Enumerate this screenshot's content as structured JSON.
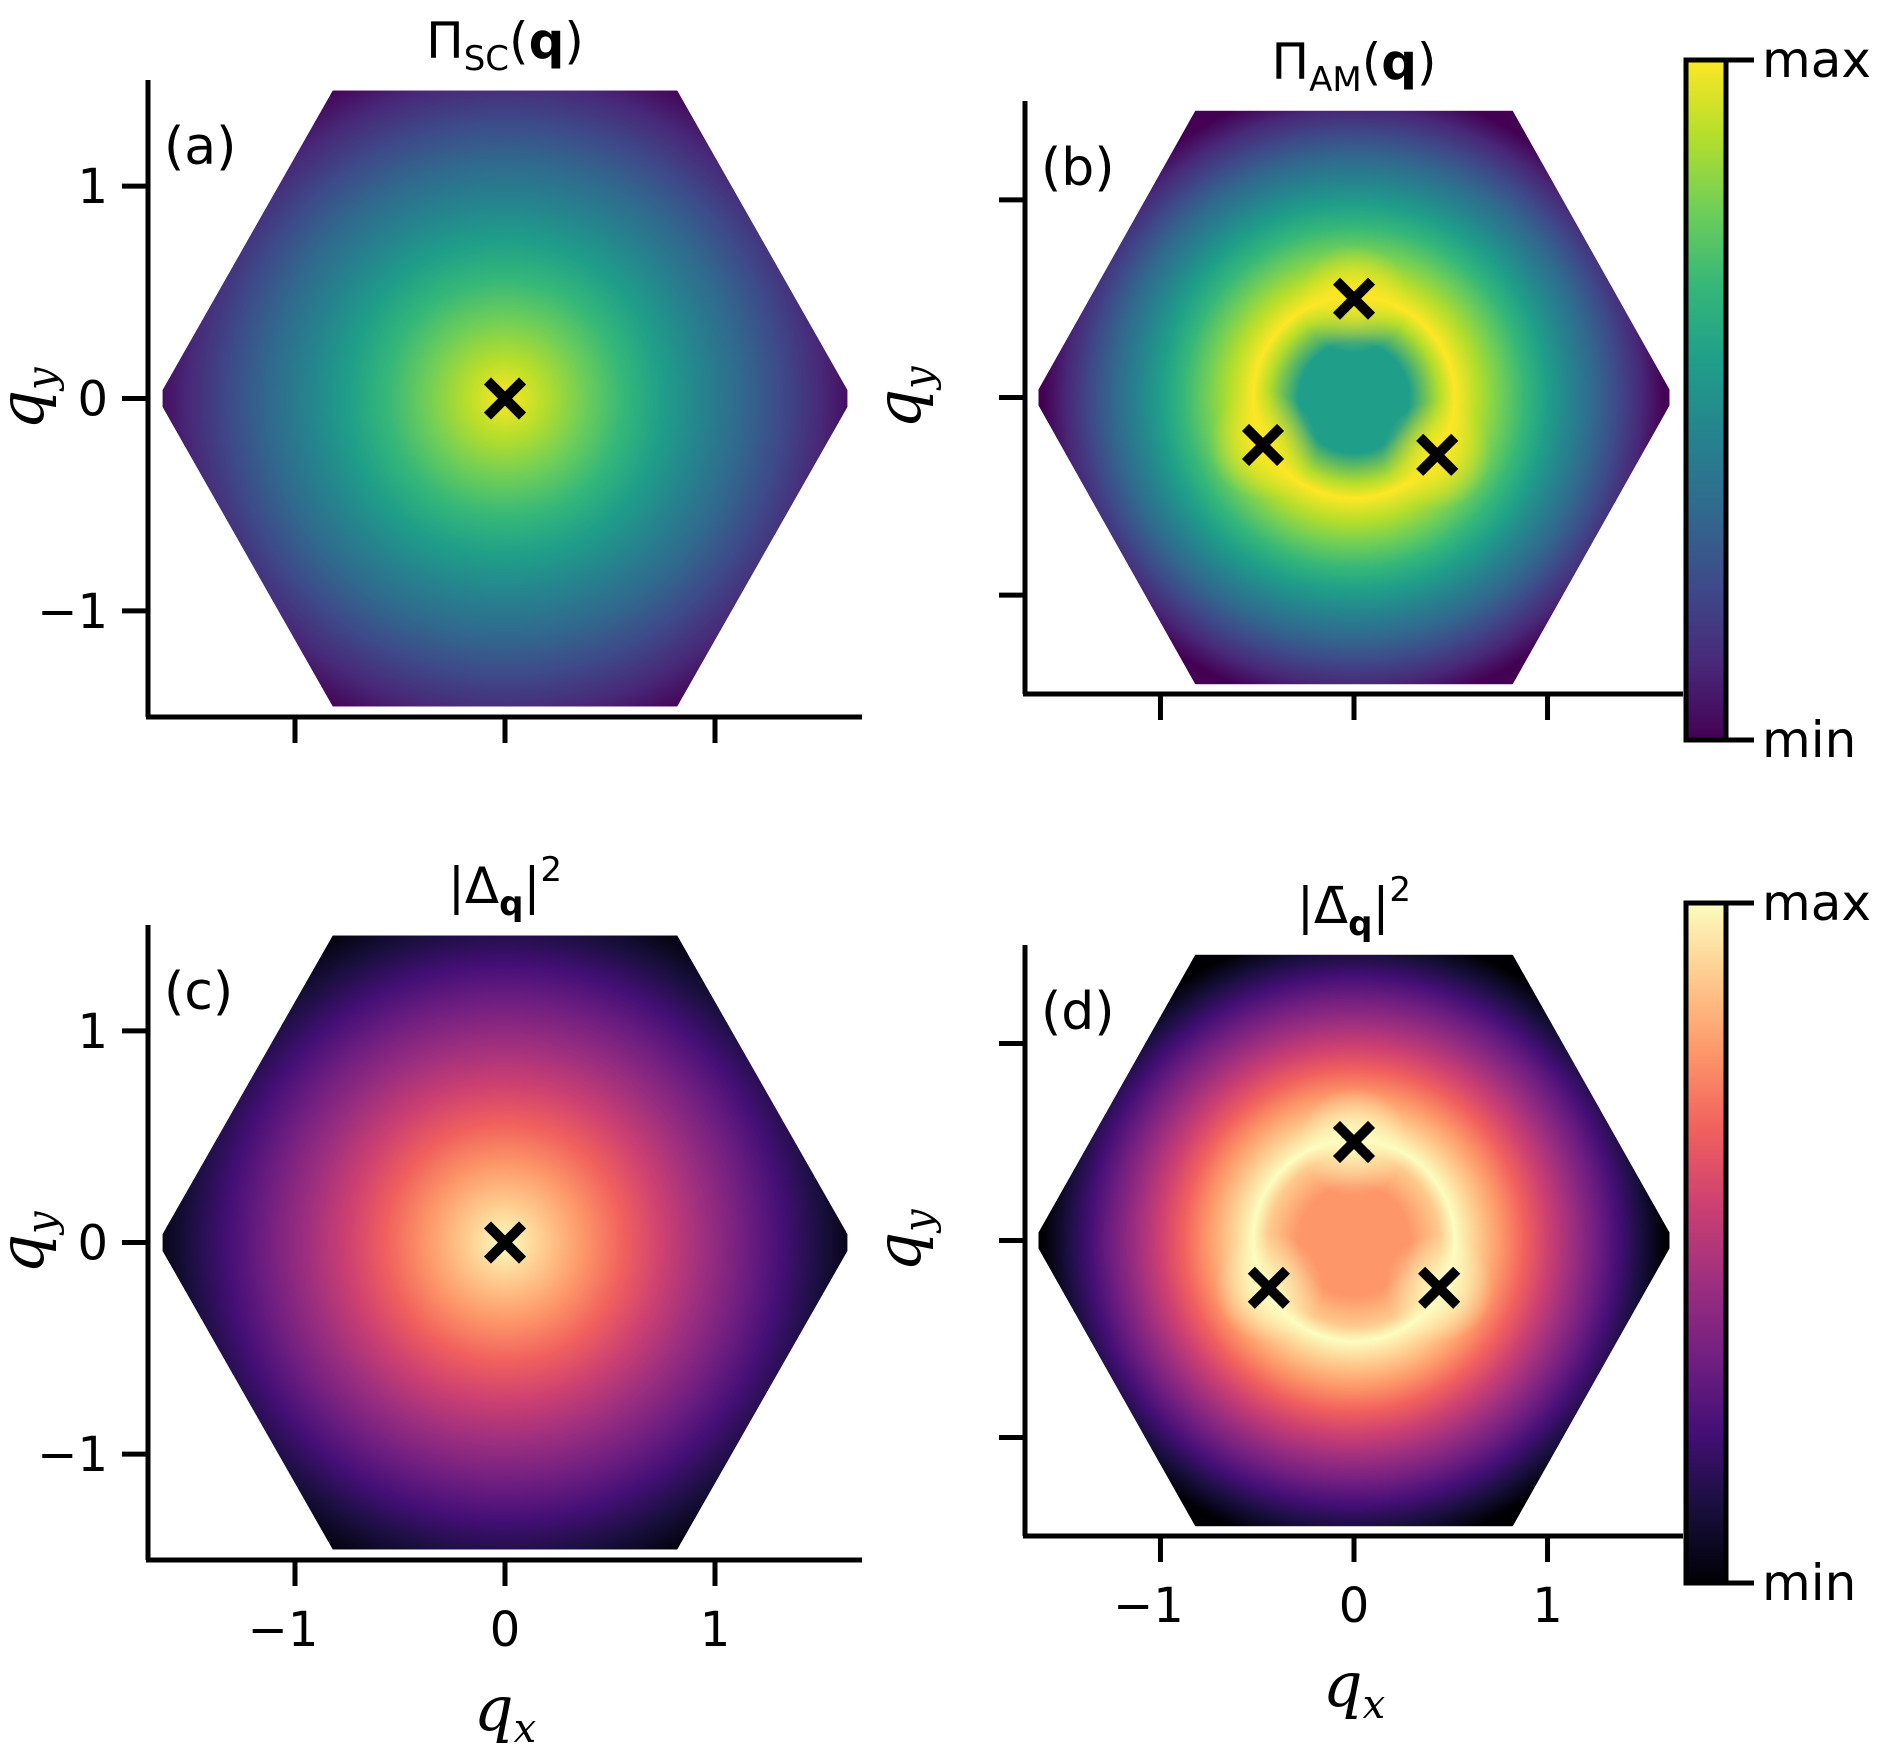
{
  "chart_data": [
    {
      "type": "heatmap",
      "panel": "(a)",
      "title": "Π_SC(q)",
      "title_parts": {
        "main": "Π",
        "sub": "SC",
        "arg_open": "(",
        "arg": "q",
        "arg_close": ")"
      },
      "xlabel": "q_x",
      "ylabel": "q_y",
      "xlim": [
        -1.7,
        1.7
      ],
      "ylim": [
        -1.5,
        1.5
      ],
      "x_ticks": [
        -1,
        0,
        1
      ],
      "y_ticks": [
        -1,
        0,
        1
      ],
      "x_tick_labels": [
        "",
        "",
        ""
      ],
      "y_tick_labels": [
        "−1",
        "0",
        "1"
      ],
      "domain": "hexagonal Brillouin zone",
      "colormap": "viridis",
      "maxima": [
        {
          "x": 0,
          "y": 0
        }
      ],
      "marker": "X"
    },
    {
      "type": "heatmap",
      "panel": "(b)",
      "title": "Π_AM(q)",
      "title_parts": {
        "main": "Π",
        "sub": "AM",
        "arg_open": "(",
        "arg": "q",
        "arg_close": ")"
      },
      "xlabel": "q_x",
      "ylabel": "q_y",
      "xlim": [
        -1.7,
        1.7
      ],
      "ylim": [
        -1.5,
        1.5
      ],
      "x_ticks": [
        -1,
        0,
        1
      ],
      "y_ticks": [
        -1,
        0,
        1
      ],
      "x_tick_labels": [
        "",
        "",
        ""
      ],
      "y_tick_labels": [
        "",
        "",
        ""
      ],
      "domain": "hexagonal Brillouin zone",
      "colormap": "viridis",
      "maxima": [
        {
          "x": 0,
          "y": 0.5
        },
        {
          "x": -0.47,
          "y": -0.24
        },
        {
          "x": 0.43,
          "y": -0.29
        }
      ],
      "marker": "X",
      "colorbar": {
        "top_label": "max",
        "bottom_label": "min"
      }
    },
    {
      "type": "heatmap",
      "panel": "(c)",
      "title": "|Δ_q|^2",
      "title_parts": {
        "bar_open": "|",
        "main": "Δ",
        "sub": "q",
        "bar_close": "|",
        "sup": "2"
      },
      "xlabel": "q_x",
      "ylabel": "q_y",
      "xlim": [
        -1.7,
        1.7
      ],
      "ylim": [
        -1.5,
        1.5
      ],
      "x_ticks": [
        -1,
        0,
        1
      ],
      "y_ticks": [
        -1,
        0,
        1
      ],
      "x_tick_labels": [
        "−1",
        "0",
        "1"
      ],
      "y_tick_labels": [
        "−1",
        "0",
        "1"
      ],
      "domain": "hexagonal Brillouin zone",
      "colormap": "magma",
      "maxima": [
        {
          "x": 0,
          "y": 0
        }
      ],
      "marker": "X"
    },
    {
      "type": "heatmap",
      "panel": "(d)",
      "title": "|Δ̄_q|^2",
      "title_parts": {
        "bar_open": "|",
        "main": "Δ̄",
        "sub": "q",
        "bar_close": "|",
        "sup": "2"
      },
      "xlabel": "q_x",
      "ylabel": "q_y",
      "xlim": [
        -1.7,
        1.7
      ],
      "ylim": [
        -1.5,
        1.5
      ],
      "x_ticks": [
        -1,
        0,
        1
      ],
      "y_ticks": [
        -1,
        0,
        1
      ],
      "x_tick_labels": [
        "−1",
        "0",
        "1"
      ],
      "y_tick_labels": [
        "",
        "",
        ""
      ],
      "domain": "hexagonal Brillouin zone",
      "colormap": "magma",
      "maxima": [
        {
          "x": 0,
          "y": 0.5
        },
        {
          "x": -0.44,
          "y": -0.24
        },
        {
          "x": 0.44,
          "y": -0.24
        }
      ],
      "marker": "X",
      "colorbar": {
        "top_label": "max",
        "bottom_label": "min"
      }
    }
  ],
  "colormaps": {
    "viridis": [
      "#440154",
      "#482878",
      "#3e4989",
      "#31688e",
      "#26828e",
      "#1f9e89",
      "#35b779",
      "#6ece58",
      "#b5de2b",
      "#fde725"
    ],
    "magma": [
      "#000004",
      "#180f3d",
      "#440f76",
      "#721f81",
      "#9e2f7f",
      "#cd4071",
      "#f1605d",
      "#fd9668",
      "#feca8d",
      "#fcfdbf"
    ]
  },
  "axis_label_parts": {
    "q": "q",
    "x": "x",
    "y": "y"
  }
}
